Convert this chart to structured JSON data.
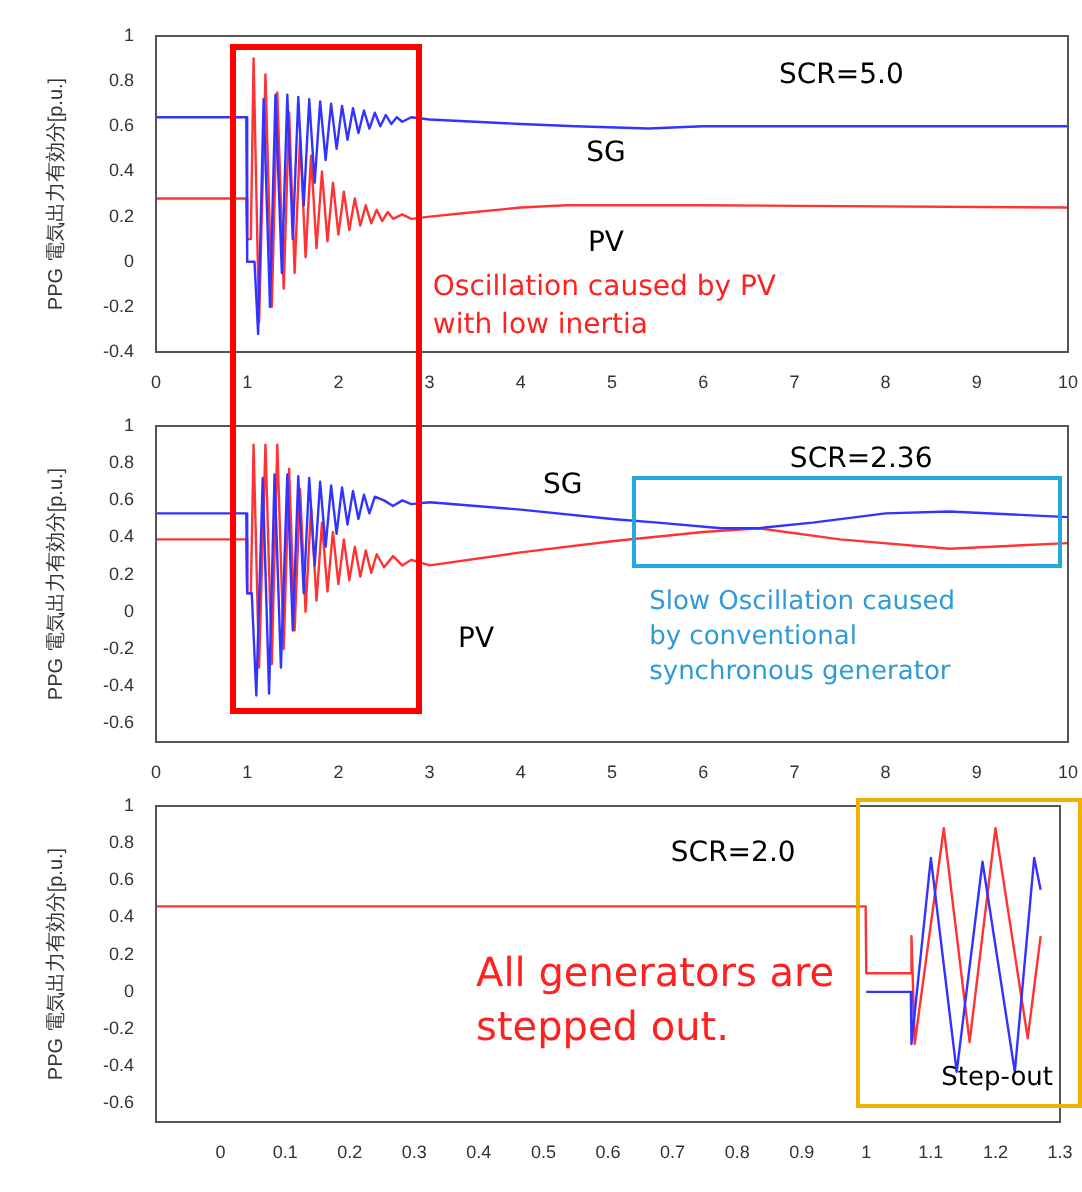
{
  "chart_data": [
    {
      "type": "line",
      "ylabel": "PPG 電気出力有効分[p.u.]",
      "xlim": [
        0,
        10
      ],
      "xticks": [
        0,
        1,
        2,
        3,
        4,
        5,
        6,
        7,
        8,
        9,
        10
      ],
      "ylim": [
        -0.4,
        1
      ],
      "yticks": [
        -0.4,
        -0.2,
        0,
        0.2,
        0.4,
        0.6,
        0.8,
        1
      ],
      "grid": false,
      "legend": false,
      "annotations": [
        "SCR=5.0",
        "Oscillation caused by PV\nwith low inertia"
      ],
      "series": [
        {
          "name": "SG",
          "color": "#3333ff",
          "x": [
            0,
            0.99,
            1.0,
            1.08,
            1.12,
            1.18,
            1.25,
            1.31,
            1.38,
            1.44,
            1.5,
            1.56,
            1.62,
            1.68,
            1.74,
            1.8,
            1.86,
            1.92,
            1.98,
            2.04,
            2.1,
            2.16,
            2.22,
            2.28,
            2.34,
            2.4,
            2.46,
            2.52,
            2.58,
            2.64,
            2.7,
            2.8,
            3,
            3.5,
            4,
            4.6,
            5.4,
            6,
            10
          ],
          "values": [
            0.64,
            0.64,
            0.0,
            0.0,
            -0.32,
            0.72,
            -0.2,
            0.74,
            -0.05,
            0.74,
            0.1,
            0.73,
            0.25,
            0.72,
            0.35,
            0.71,
            0.45,
            0.7,
            0.5,
            0.69,
            0.54,
            0.68,
            0.57,
            0.67,
            0.59,
            0.66,
            0.6,
            0.65,
            0.61,
            0.64,
            0.62,
            0.64,
            0.63,
            0.62,
            0.61,
            0.6,
            0.59,
            0.6,
            0.6
          ]
        },
        {
          "name": "PV",
          "color": "#ff3333",
          "x": [
            0,
            0.99,
            1.0,
            1.04,
            1.07,
            1.13,
            1.2,
            1.27,
            1.33,
            1.4,
            1.46,
            1.52,
            1.58,
            1.64,
            1.7,
            1.76,
            1.82,
            1.88,
            1.94,
            2.0,
            2.06,
            2.12,
            2.18,
            2.24,
            2.3,
            2.36,
            2.42,
            2.48,
            2.54,
            2.6,
            2.7,
            2.8,
            3,
            3.5,
            4,
            4.5,
            6,
            10
          ],
          "values": [
            0.28,
            0.28,
            0.1,
            0.1,
            0.9,
            -0.27,
            0.83,
            -0.2,
            0.75,
            -0.12,
            0.66,
            -0.05,
            0.55,
            0.02,
            0.47,
            0.06,
            0.4,
            0.09,
            0.35,
            0.12,
            0.31,
            0.14,
            0.28,
            0.16,
            0.25,
            0.17,
            0.23,
            0.18,
            0.22,
            0.19,
            0.21,
            0.19,
            0.2,
            0.22,
            0.24,
            0.25,
            0.25,
            0.24
          ]
        }
      ]
    },
    {
      "type": "line",
      "ylabel": "PPG 電気出力有効分[p.u.]",
      "xlim": [
        0,
        10
      ],
      "xticks": [
        0,
        1,
        2,
        3,
        4,
        5,
        6,
        7,
        8,
        9,
        10
      ],
      "ylim": [
        -0.7,
        1
      ],
      "yticks": [
        -0.6,
        -0.4,
        -0.2,
        0,
        0.2,
        0.4,
        0.6,
        0.8,
        1
      ],
      "grid": false,
      "legend": false,
      "annotations": [
        "SCR=2.36",
        "Slow Oscillation caused\nby conventional\nsynchronous generator"
      ],
      "series": [
        {
          "name": "SG",
          "color": "#3333ff",
          "x": [
            0,
            0.99,
            1.0,
            1.05,
            1.1,
            1.17,
            1.24,
            1.3,
            1.37,
            1.44,
            1.5,
            1.56,
            1.62,
            1.68,
            1.74,
            1.8,
            1.86,
            1.92,
            1.98,
            2.04,
            2.1,
            2.16,
            2.22,
            2.28,
            2.34,
            2.4,
            2.5,
            2.6,
            2.7,
            2.8,
            3,
            4,
            5,
            5.5,
            6.2,
            6.6,
            7.2,
            8,
            8.7,
            10
          ],
          "values": [
            0.53,
            0.53,
            0.1,
            0.1,
            -0.45,
            0.72,
            -0.44,
            0.74,
            -0.3,
            0.74,
            -0.1,
            0.73,
            0.1,
            0.72,
            0.25,
            0.7,
            0.35,
            0.68,
            0.42,
            0.67,
            0.47,
            0.65,
            0.5,
            0.63,
            0.53,
            0.62,
            0.6,
            0.57,
            0.6,
            0.58,
            0.59,
            0.55,
            0.5,
            0.48,
            0.45,
            0.45,
            0.48,
            0.53,
            0.54,
            0.51
          ]
        },
        {
          "name": "PV",
          "color": "#ff3333",
          "x": [
            0,
            0.99,
            1.0,
            1.04,
            1.07,
            1.13,
            1.2,
            1.27,
            1.33,
            1.4,
            1.46,
            1.52,
            1.58,
            1.64,
            1.7,
            1.76,
            1.82,
            1.88,
            1.94,
            2.0,
            2.06,
            2.12,
            2.18,
            2.24,
            2.3,
            2.36,
            2.42,
            2.5,
            2.6,
            2.7,
            2.8,
            3,
            4,
            5,
            6,
            6.6,
            7.5,
            8.7,
            10
          ],
          "values": [
            0.39,
            0.39,
            0.1,
            0.1,
            0.9,
            -0.3,
            0.9,
            -0.28,
            0.9,
            -0.2,
            0.77,
            -0.1,
            0.66,
            0.0,
            0.56,
            0.06,
            0.48,
            0.11,
            0.43,
            0.15,
            0.39,
            0.17,
            0.35,
            0.19,
            0.33,
            0.21,
            0.31,
            0.24,
            0.3,
            0.25,
            0.28,
            0.25,
            0.32,
            0.38,
            0.43,
            0.45,
            0.39,
            0.34,
            0.37
          ]
        }
      ]
    },
    {
      "type": "line",
      "ylabel": "PPG 電気出力有効分[p.u.]",
      "xlim": [
        -0.1,
        1.3
      ],
      "xticks": [
        0,
        0.1,
        0.2,
        0.3,
        0.4,
        0.5,
        0.6,
        0.7,
        0.8,
        0.9,
        1,
        1.1,
        1.2,
        1.3
      ],
      "ylim": [
        -0.7,
        1
      ],
      "yticks": [
        -0.6,
        -0.4,
        -0.2,
        0,
        0.2,
        0.4,
        0.6,
        0.8,
        1
      ],
      "grid": false,
      "legend": false,
      "annotations": [
        "SCR=2.0",
        "All generators are\nstepped out.",
        "Step-out"
      ],
      "series": [
        {
          "color": "#3333ff",
          "x": [
            1.0,
            1.069,
            1.07,
            1.1,
            1.14,
            1.18,
            1.23,
            1.26,
            1.27
          ],
          "values": [
            0.0,
            0.0,
            -0.28,
            0.72,
            -0.43,
            0.7,
            -0.43,
            0.72,
            0.55
          ]
        },
        {
          "color": "#ff3333",
          "x": [
            -0.1,
            0.999,
            1.0,
            1.069,
            1.07,
            1.075,
            1.12,
            1.16,
            1.2,
            1.25,
            1.27
          ],
          "values": [
            0.46,
            0.46,
            0.1,
            0.1,
            0.3,
            -0.28,
            0.88,
            -0.27,
            0.88,
            -0.25,
            0.3
          ]
        }
      ]
    }
  ]
}
